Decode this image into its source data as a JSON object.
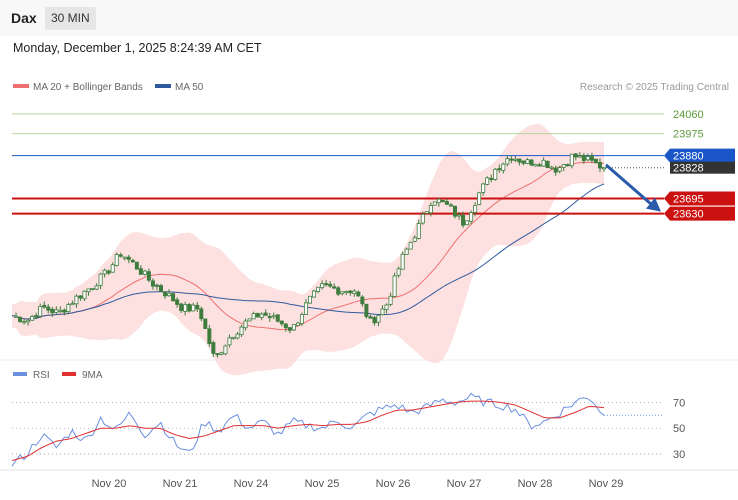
{
  "header": {
    "symbol": "Dax",
    "timeframe": "30 MIN",
    "datetime": "Monday, December 1, 2025 8:24:39 AM CET"
  },
  "legend": {
    "ma20": "MA 20 + Bollinger Bands",
    "ma50": "MA 50",
    "copyright": "Research © 2025 Trading Central",
    "rsi": "RSI",
    "rsi_ma": "9MA"
  },
  "colors": {
    "ma20": "#f07070",
    "band": "#fdd8d8",
    "ma50": "#2f5a9e",
    "candle": "#3f7d3f",
    "resistance": "#b5d6a0",
    "support": "#cc1111",
    "current": "#1a56c9",
    "price_tag": "#333333",
    "arrow": "#2a5aa8",
    "rsi": "#6a8fe0",
    "rsi_ma": "#e03030"
  },
  "chart_data": [
    {
      "type": "candlestick",
      "title": "",
      "x_ticks": [
        "Nov 20",
        "Nov 21",
        "Nov 24",
        "Nov 25",
        "Nov 26",
        "Nov 27",
        "Nov 28",
        "Nov 29"
      ],
      "ylim": [
        23020,
        24120
      ],
      "levels": [
        {
          "value": 24060,
          "label": "24060",
          "kind": "resistance"
        },
        {
          "value": 23975,
          "label": "23975",
          "kind": "resistance"
        },
        {
          "value": 23880,
          "label": "23880",
          "kind": "current"
        },
        {
          "value": 23828,
          "label": "23828",
          "kind": "last"
        },
        {
          "value": 23695,
          "label": "23695",
          "kind": "support"
        },
        {
          "value": 23630,
          "label": "23630",
          "kind": "support"
        }
      ],
      "price_path": [
        23190,
        23170,
        23225,
        23200,
        23260,
        23310,
        23370,
        23460,
        23400,
        23330,
        23280,
        23220,
        23220,
        23000,
        23100,
        23160,
        23200,
        23170,
        23130,
        23250,
        23320,
        23300,
        23300,
        23160,
        23230,
        23430,
        23560,
        23700,
        23660,
        23590,
        23720,
        23820,
        23880,
        23850,
        23860,
        23820,
        23880,
        23858,
        23828
      ]
    },
    {
      "type": "line",
      "title": "",
      "series_names": [
        "RSI",
        "9MA"
      ],
      "ylim": [
        20,
        85
      ],
      "y_ticks": [
        30,
        50,
        70
      ],
      "rsi_path": [
        22,
        30,
        45,
        35,
        48,
        40,
        58,
        48,
        62,
        45,
        55,
        38,
        30,
        55,
        48,
        60,
        50,
        55,
        45,
        55,
        52,
        50,
        56,
        50,
        60,
        65,
        68,
        62,
        66,
        72,
        70,
        74,
        70,
        68,
        65,
        52,
        55,
        62,
        70,
        75,
        60
      ],
      "rsi_ma_path": [
        25,
        28,
        35,
        40,
        42,
        46,
        50,
        50,
        52,
        50,
        50,
        45,
        42,
        44,
        48,
        52,
        52,
        52,
        50,
        52,
        53,
        52,
        53,
        53,
        55,
        60,
        64,
        64,
        66,
        68,
        70,
        71,
        71,
        70,
        68,
        63,
        58,
        58,
        62,
        67,
        66
      ]
    }
  ]
}
